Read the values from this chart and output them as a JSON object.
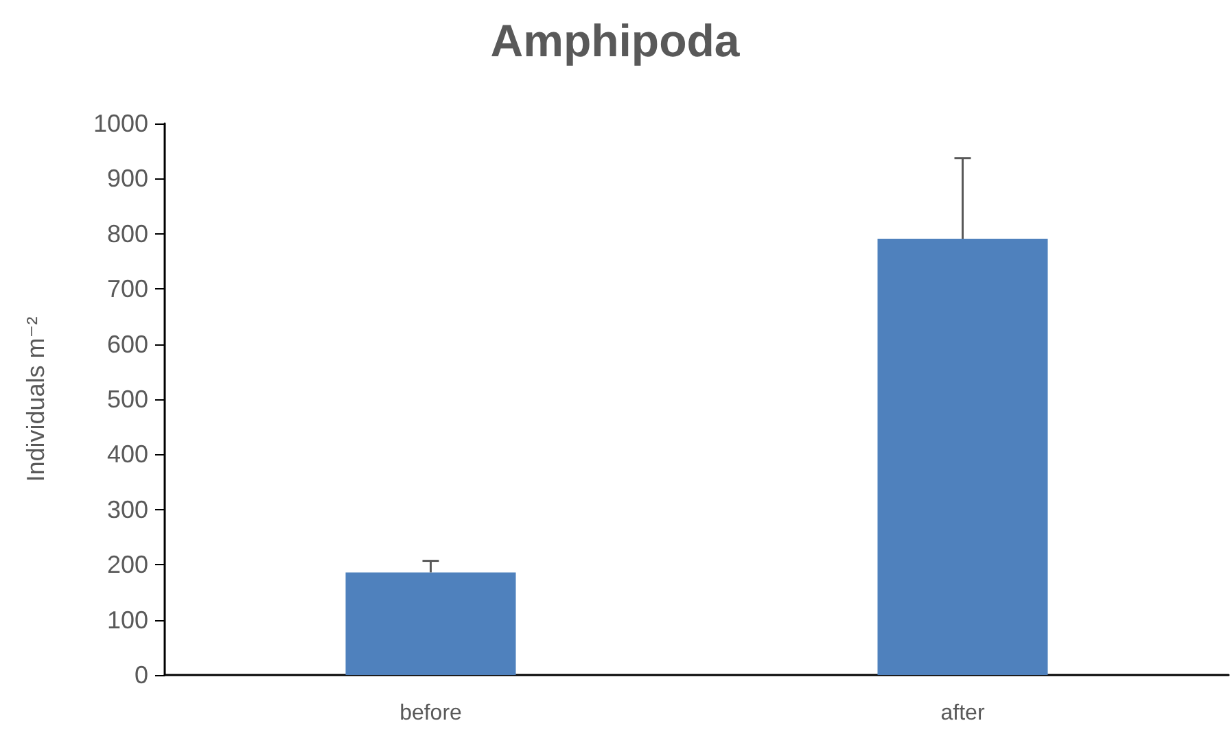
{
  "chart_data": {
    "type": "bar",
    "title": "Amphipoda",
    "ylabel": "Individuals m⁻²",
    "categories": [
      "before",
      "after"
    ],
    "series": [
      {
        "color": "#4f81bd",
        "values": [
          186,
          791
        ],
        "errors": [
          [
            186,
            207
          ],
          [
            791,
            937
          ]
        ]
      }
    ],
    "ylim": [
      0,
      1000
    ],
    "yticks": [
      0,
      100,
      200,
      300,
      400,
      500,
      600,
      700,
      800,
      900,
      1000
    ],
    "grid": false
  }
}
